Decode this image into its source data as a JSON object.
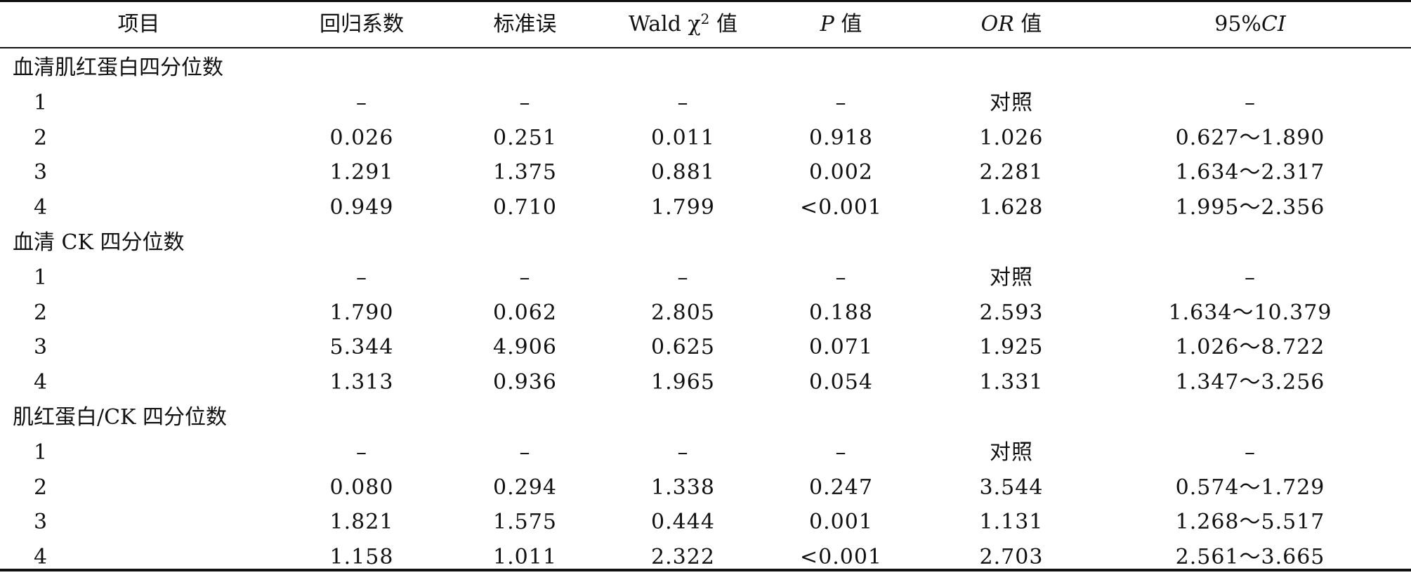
{
  "header": {
    "item": "项目",
    "coef": "回归系数",
    "se": "标准误",
    "wald_prefix": "Wald χ",
    "wald_sup": "2",
    "wald_suffix": " 值",
    "p_italic": "P",
    "p_suffix": " 值",
    "or_italic": "OR",
    "or_suffix": " 值",
    "ci_prefix": "95%",
    "ci_italic": "CI"
  },
  "groups": [
    {
      "label": "血清肌红蛋白四分位数",
      "rows": [
        {
          "level": "1",
          "coef": "–",
          "se": "–",
          "wald": "–",
          "p": "–",
          "or": "对照",
          "ci": "–"
        },
        {
          "level": "2",
          "coef": "0.026",
          "se": "0.251",
          "wald": "0.011",
          "p": "0.918",
          "or": "1.026",
          "ci": "0.627～1.890"
        },
        {
          "level": "3",
          "coef": "1.291",
          "se": "1.375",
          "wald": "0.881",
          "p": "0.002",
          "or": "2.281",
          "ci": "1.634～2.317"
        },
        {
          "level": "4",
          "coef": "0.949",
          "se": "0.710",
          "wald": "1.799",
          "p": "<0.001",
          "or": "1.628",
          "ci": "1.995～2.356"
        }
      ]
    },
    {
      "label": "血清 CK 四分位数",
      "rows": [
        {
          "level": "1",
          "coef": "–",
          "se": "–",
          "wald": "–",
          "p": "–",
          "or": "对照",
          "ci": "–"
        },
        {
          "level": "2",
          "coef": "1.790",
          "se": "0.062",
          "wald": "2.805",
          "p": "0.188",
          "or": "2.593",
          "ci": "1.634～10.379"
        },
        {
          "level": "3",
          "coef": "5.344",
          "se": "4.906",
          "wald": "0.625",
          "p": "0.071",
          "or": "1.925",
          "ci": "1.026～8.722"
        },
        {
          "level": "4",
          "coef": "1.313",
          "se": "0.936",
          "wald": "1.965",
          "p": "0.054",
          "or": "1.331",
          "ci": "1.347～3.256"
        }
      ]
    },
    {
      "label": "肌红蛋白/CK 四分位数",
      "rows": [
        {
          "level": "1",
          "coef": "–",
          "se": "–",
          "wald": "–",
          "p": "–",
          "or": "对照",
          "ci": "–"
        },
        {
          "level": "2",
          "coef": "0.080",
          "se": "0.294",
          "wald": "1.338",
          "p": "0.247",
          "or": "3.544",
          "ci": "0.574～1.729"
        },
        {
          "level": "3",
          "coef": "1.821",
          "se": "1.575",
          "wald": "0.444",
          "p": "0.001",
          "or": "1.131",
          "ci": "1.268～5.517"
        },
        {
          "level": "4",
          "coef": "1.158",
          "se": "1.011",
          "wald": "2.322",
          "p": "<0.001",
          "or": "2.703",
          "ci": "2.561～3.665"
        }
      ]
    }
  ]
}
